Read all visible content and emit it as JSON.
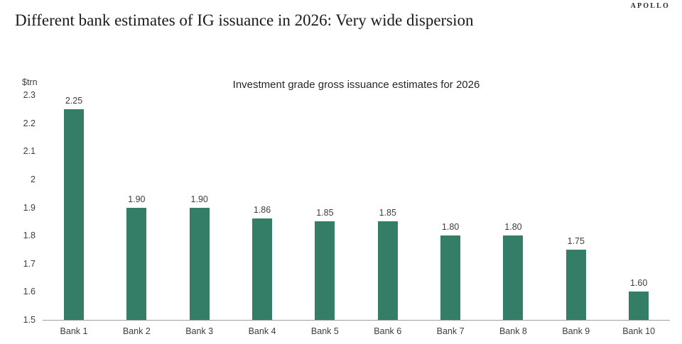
{
  "header": {
    "brand": "APOLLO",
    "title": "Different bank estimates of IG issuance in 2026: Very wide dispersion"
  },
  "chart_data": {
    "type": "bar",
    "title": "Investment grade gross issuance estimates for 2026",
    "xlabel": "",
    "ylabel": "$trn",
    "categories": [
      "Bank 1",
      "Bank 2",
      "Bank 3",
      "Bank 4",
      "Bank 5",
      "Bank 6",
      "Bank 7",
      "Bank 8",
      "Bank 9",
      "Bank 10"
    ],
    "values": [
      2.25,
      1.9,
      1.9,
      1.86,
      1.85,
      1.85,
      1.8,
      1.8,
      1.75,
      1.6
    ],
    "value_labels": [
      "2.25",
      "1.90",
      "1.90",
      "1.86",
      "1.85",
      "1.85",
      "1.80",
      "1.80",
      "1.75",
      "1.60"
    ],
    "ylim": [
      1.5,
      2.3
    ],
    "yticks": [
      "2.3",
      "2.2",
      "2.1",
      "2",
      "1.9",
      "1.8",
      "1.7",
      "1.6",
      "1.5"
    ],
    "grid": false,
    "legend_position": "none",
    "bar_color": "#347E68",
    "axis_line_color": "#9e9e9e",
    "text_color": "#3d3d3d"
  }
}
